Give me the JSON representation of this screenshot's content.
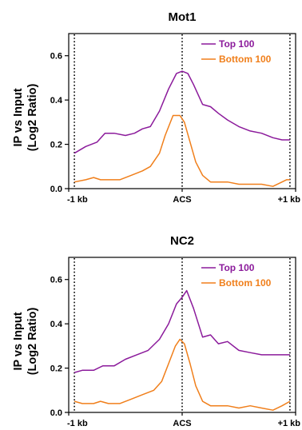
{
  "chart_data": [
    {
      "type": "line",
      "title": "Mot1",
      "ylabel_line1": "IP vs Input",
      "ylabel_line2": "(Log2 Ratio)",
      "xlabel": "",
      "xlim": [
        -1,
        1
      ],
      "ylim": [
        0,
        0.7
      ],
      "yticks": [
        0.0,
        0.2,
        0.4,
        0.6
      ],
      "ytick_labels": [
        "0.0",
        "0.2",
        "0.4",
        "0.6"
      ],
      "xticks": [
        -1,
        0,
        1
      ],
      "xtick_labels": [
        "-1 kb",
        "ACS",
        "+1 kb"
      ],
      "vlines": [
        -0.95,
        0.0,
        0.95
      ],
      "legend_position": "top-right",
      "series": [
        {
          "name": "Top 100",
          "color": "#8B1A9B",
          "x": [
            -0.95,
            -0.85,
            -0.75,
            -0.68,
            -0.6,
            -0.5,
            -0.42,
            -0.35,
            -0.28,
            -0.2,
            -0.12,
            -0.05,
            0.0,
            0.05,
            0.1,
            0.18,
            0.25,
            0.32,
            0.4,
            0.5,
            0.6,
            0.7,
            0.8,
            0.88,
            0.95
          ],
          "y": [
            0.16,
            0.19,
            0.21,
            0.25,
            0.25,
            0.24,
            0.25,
            0.27,
            0.28,
            0.35,
            0.45,
            0.52,
            0.53,
            0.52,
            0.47,
            0.38,
            0.37,
            0.34,
            0.31,
            0.28,
            0.26,
            0.25,
            0.23,
            0.22,
            0.22
          ]
        },
        {
          "name": "Bottom 100",
          "color": "#F07F1B",
          "x": [
            -0.95,
            -0.85,
            -0.78,
            -0.72,
            -0.65,
            -0.55,
            -0.45,
            -0.35,
            -0.28,
            -0.2,
            -0.15,
            -0.08,
            -0.02,
            0.02,
            0.07,
            0.12,
            0.18,
            0.25,
            0.32,
            0.4,
            0.5,
            0.6,
            0.7,
            0.8,
            0.88,
            0.92,
            0.95
          ],
          "y": [
            0.03,
            0.04,
            0.05,
            0.04,
            0.04,
            0.04,
            0.06,
            0.08,
            0.1,
            0.16,
            0.24,
            0.33,
            0.33,
            0.3,
            0.21,
            0.12,
            0.06,
            0.03,
            0.03,
            0.03,
            0.02,
            0.02,
            0.02,
            0.01,
            0.03,
            0.04,
            0.04
          ]
        }
      ]
    },
    {
      "type": "line",
      "title": "NC2",
      "ylabel_line1": "IP vs Input",
      "ylabel_line2": "(Log2 Ratio)",
      "xlabel": "",
      "xlim": [
        -1,
        1
      ],
      "ylim": [
        0,
        0.7
      ],
      "yticks": [
        0.0,
        0.2,
        0.4,
        0.6
      ],
      "ytick_labels": [
        "0.0",
        "0.2",
        "0.4",
        "0.6"
      ],
      "xticks": [
        -1,
        0,
        1
      ],
      "xtick_labels": [
        "-1 kb",
        "ACS",
        "+1 kb"
      ],
      "vlines": [
        -0.95,
        0.0,
        0.95
      ],
      "legend_position": "top-right",
      "series": [
        {
          "name": "Top 100",
          "color": "#8B1A9B",
          "x": [
            -0.95,
            -0.88,
            -0.78,
            -0.7,
            -0.6,
            -0.5,
            -0.4,
            -0.3,
            -0.2,
            -0.12,
            -0.05,
            0.0,
            0.04,
            0.1,
            0.18,
            0.25,
            0.32,
            0.4,
            0.5,
            0.6,
            0.7,
            0.8,
            0.9,
            0.95
          ],
          "y": [
            0.18,
            0.19,
            0.19,
            0.21,
            0.21,
            0.24,
            0.26,
            0.28,
            0.33,
            0.4,
            0.49,
            0.52,
            0.55,
            0.47,
            0.34,
            0.35,
            0.31,
            0.32,
            0.28,
            0.27,
            0.26,
            0.26,
            0.26,
            0.26
          ]
        },
        {
          "name": "Bottom 100",
          "color": "#F07F1B",
          "x": [
            -0.95,
            -0.88,
            -0.78,
            -0.72,
            -0.65,
            -0.55,
            -0.45,
            -0.35,
            -0.25,
            -0.18,
            -0.12,
            -0.06,
            -0.02,
            0.02,
            0.07,
            0.12,
            0.18,
            0.25,
            0.32,
            0.4,
            0.5,
            0.6,
            0.7,
            0.8,
            0.88,
            0.95
          ],
          "y": [
            0.05,
            0.04,
            0.04,
            0.05,
            0.04,
            0.04,
            0.06,
            0.08,
            0.1,
            0.14,
            0.22,
            0.3,
            0.33,
            0.31,
            0.22,
            0.12,
            0.05,
            0.03,
            0.03,
            0.03,
            0.02,
            0.03,
            0.02,
            0.01,
            0.03,
            0.05
          ]
        }
      ]
    }
  ]
}
